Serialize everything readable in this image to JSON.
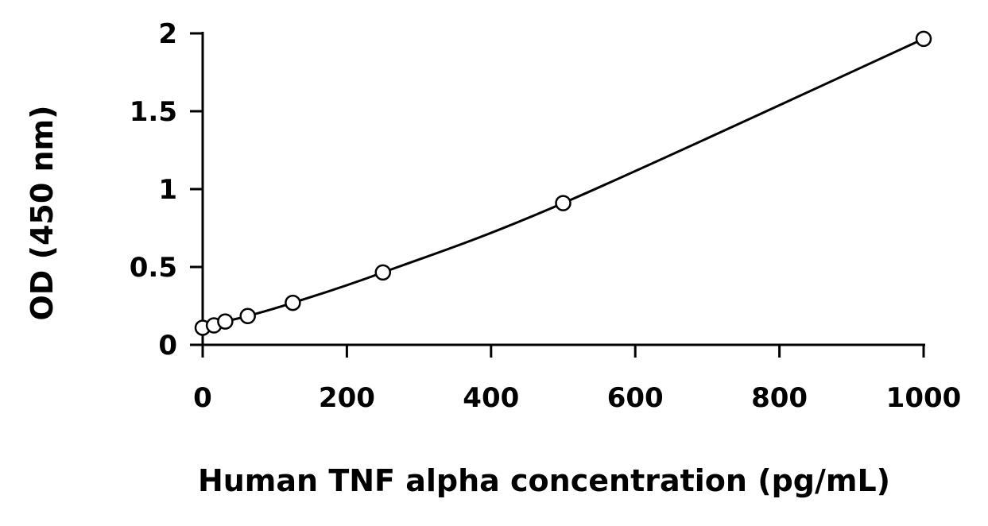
{
  "chart_data": {
    "type": "scatter",
    "title": "",
    "xlabel": "Human TNF alpha concentration (pg/mL)",
    "ylabel": "OD (450 nm)",
    "xlim": [
      0,
      1000
    ],
    "ylim": [
      0,
      2
    ],
    "xticks": [
      "0",
      "200",
      "400",
      "600",
      "800",
      "1000"
    ],
    "yticks": [
      "0",
      "0.5",
      "1",
      "1.5",
      "2"
    ],
    "grid": false,
    "legend": "none",
    "series": [
      {
        "x": [
          0,
          15.6,
          31.3,
          62.5,
          125,
          250,
          500,
          1000
        ],
        "y": [
          0.11,
          0.125,
          0.15,
          0.185,
          0.27,
          0.465,
          0.91,
          1.965
        ],
        "marker": "open-circle",
        "fit": "smooth-curve",
        "color": "#000000"
      }
    ]
  }
}
